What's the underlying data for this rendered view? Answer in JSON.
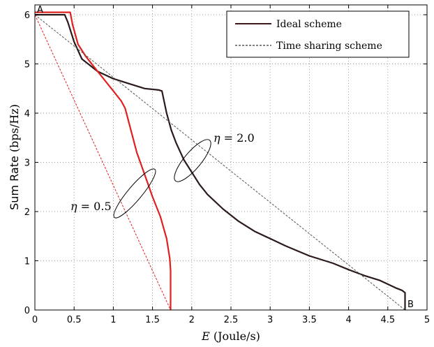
{
  "chart_data": {
    "type": "line",
    "xlabel_italic": "E",
    "xlabel_rest": " (Joule/s)",
    "ylabel_main": "Sum Rate",
    "ylabel_unit": " (bps/Hz)",
    "xlim": [
      0,
      5
    ],
    "ylim": [
      0,
      6.2
    ],
    "xticks": [
      "0",
      "0.5",
      "1",
      "1.5",
      "2",
      "2.5",
      "3",
      "3.5",
      "4",
      "4.5",
      "5"
    ],
    "yticks": [
      "0",
      "1",
      "2",
      "3",
      "4",
      "5",
      "6"
    ],
    "grid": true,
    "legend_position": "top-right",
    "legend": [
      {
        "label": "Ideal scheme",
        "style": "solid",
        "color": "#3a1a1a"
      },
      {
        "label": "Time sharing scheme",
        "style": "dashed",
        "color": "#000000"
      }
    ],
    "series": [
      {
        "key": "ideal_eta_2",
        "style": "solid",
        "color": "#2b1a1a",
        "x": [
          0,
          0.38,
          0.42,
          0.5,
          0.6,
          0.8,
          1.0,
          1.2,
          1.4,
          1.58,
          1.62,
          1.68,
          1.74,
          1.8,
          1.9,
          2.0,
          2.1,
          2.2,
          2.4,
          2.6,
          2.8,
          3.0,
          3.2,
          3.5,
          3.8,
          4.0,
          4.2,
          4.4,
          4.6,
          4.68,
          4.72,
          4.72
        ],
        "y": [
          6.0,
          6.0,
          5.85,
          5.45,
          5.1,
          4.85,
          4.7,
          4.6,
          4.5,
          4.47,
          4.45,
          4.0,
          3.65,
          3.4,
          3.05,
          2.8,
          2.55,
          2.35,
          2.05,
          1.8,
          1.6,
          1.45,
          1.3,
          1.1,
          0.95,
          0.82,
          0.7,
          0.6,
          0.45,
          0.4,
          0.35,
          0.0
        ]
      },
      {
        "key": "ideal_eta_05",
        "style": "solid",
        "color": "#e02020",
        "x": [
          0,
          0.45,
          0.48,
          0.55,
          0.65,
          0.8,
          0.9,
          1.0,
          1.1,
          1.15,
          1.2,
          1.25,
          1.3,
          1.4,
          1.5,
          1.6,
          1.68,
          1.72,
          1.73,
          1.73
        ],
        "y": [
          6.05,
          6.05,
          5.8,
          5.4,
          5.15,
          4.85,
          4.65,
          4.45,
          4.25,
          4.1,
          3.8,
          3.5,
          3.2,
          2.75,
          2.3,
          1.9,
          1.45,
          1.05,
          0.8,
          0.0
        ]
      },
      {
        "key": "ts_eta_2",
        "style": "dashed",
        "color": "#555555",
        "x": [
          0,
          4.72
        ],
        "y": [
          6.0,
          0.0
        ]
      },
      {
        "key": "ts_eta_05",
        "style": "dashed",
        "color": "#e02020",
        "x": [
          0,
          1.73
        ],
        "y": [
          6.0,
          0.0
        ]
      }
    ],
    "annotations": [
      {
        "text": "A"
      },
      {
        "text": "B"
      }
    ],
    "eta_labels": [
      {
        "symbol": "η",
        "value": " = 2.0"
      },
      {
        "symbol": "η",
        "value": " = 0.5"
      }
    ]
  }
}
